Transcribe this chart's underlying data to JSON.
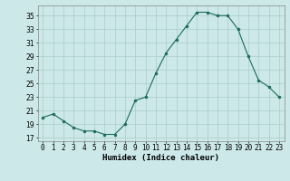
{
  "x": [
    0,
    1,
    2,
    3,
    4,
    5,
    6,
    7,
    8,
    9,
    10,
    11,
    12,
    13,
    14,
    15,
    16,
    17,
    18,
    19,
    20,
    21,
    22,
    23
  ],
  "y": [
    20,
    20.5,
    19.5,
    18.5,
    18,
    18,
    17.5,
    17.5,
    19,
    22.5,
    23,
    26.5,
    29.5,
    31.5,
    33.5,
    35.5,
    35.5,
    35,
    35,
    33,
    29,
    25.5,
    24.5,
    23
  ],
  "line_color": "#1a6b5a",
  "marker_color": "#1a6b5a",
  "bg_color": "#cce8e8",
  "grid_color": "#aacccc",
  "xlabel": "Humidex (Indice chaleur)",
  "ylim": [
    16.5,
    36.5
  ],
  "xlim": [
    -0.5,
    23.5
  ],
  "yticks": [
    17,
    19,
    21,
    23,
    25,
    27,
    29,
    31,
    33,
    35
  ],
  "xtick_labels": [
    "0",
    "1",
    "2",
    "3",
    "4",
    "5",
    "6",
    "7",
    "8",
    "9",
    "10",
    "11",
    "12",
    "13",
    "14",
    "15",
    "16",
    "17",
    "18",
    "19",
    "20",
    "21",
    "22",
    "23"
  ],
  "xlabel_fontsize": 6.5,
  "tick_fontsize": 5.5
}
